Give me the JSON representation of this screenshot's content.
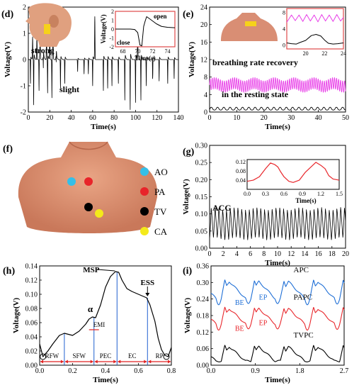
{
  "colors": {
    "axis": "#000000",
    "black": "#000000",
    "magenta": "#e83ee8",
    "red": "#e8262b",
    "blue": "#1f6fd6",
    "ao": "#35bfe8",
    "pa": "#e8242a",
    "tv": "#000000",
    "ca": "#f4ea1a",
    "skin": "#d98e74",
    "inset_frame": "#e04a4a",
    "annot_red": "#e02020",
    "annot_blue": "#2060d0"
  },
  "chart_data": [
    {
      "id": "d",
      "panel_label": "(d)",
      "type": "line",
      "xlabel": "Time(s)",
      "ylabel": "Voltage(V)",
      "xlim": [
        0,
        140
      ],
      "ylim": [
        -2.2,
        2.2
      ],
      "xticks": [
        "0",
        "20",
        "40",
        "60",
        "80",
        "100",
        "120",
        "140"
      ],
      "yticks": [
        "-2",
        "-1",
        "0",
        "1",
        "2"
      ],
      "annotations": [
        "strong",
        "slight"
      ],
      "series": [
        {
          "color": "black",
          "signal": {
            "kind": "blink",
            "strong_events": [
              [
                4,
                0.95
              ],
              [
                8,
                1.05
              ],
              [
                11,
                1.1
              ],
              [
                14,
                1.15
              ],
              [
                17,
                1.2
              ],
              [
                20,
                1.3
              ],
              [
                23,
                1.3
              ],
              [
                26,
                1.2
              ],
              [
                62,
                1.8
              ],
              [
                102,
                1.4
              ]
            ],
            "slight_events": [
              [
                2,
                -1.0
              ],
              [
                5,
                -1.9
              ],
              [
                10,
                -1.3
              ],
              [
                14,
                -1.5
              ],
              [
                18,
                -1.4
              ],
              [
                22,
                -1.6
              ],
              [
                26,
                -1.3
              ],
              [
                30,
                -1.2
              ],
              [
                34,
                -1.0
              ],
              [
                46,
                -0.5
              ],
              [
                52,
                -0.6
              ],
              [
                56,
                -0.6
              ],
              [
                60,
                -1.1
              ],
              [
                70,
                -1.3
              ],
              [
                74,
                -1.2
              ],
              [
                78,
                -1.1
              ],
              [
                84,
                -1.0
              ],
              [
                90,
                -1.7
              ],
              [
                95,
                -2.1
              ],
              [
                100,
                -1.8
              ],
              [
                105,
                -1.7
              ],
              [
                110,
                -1.1
              ],
              [
                116,
                -1.0
              ],
              [
                122,
                -0.9
              ],
              [
                130,
                -1.0
              ],
              [
                136,
                -0.8
              ]
            ]
          }
        }
      ],
      "inset": {
        "xlabel": "Time(s)",
        "ylabel": "Voltage(V)",
        "xlim": [
          67,
          75
        ],
        "ylim": [
          -2,
          2
        ],
        "xticks": [
          "68",
          "70",
          "72",
          "74"
        ],
        "yticks": [
          "-2",
          "-1",
          "0",
          "1",
          "2"
        ],
        "annotations": [
          "open",
          "close"
        ],
        "points": [
          [
            67,
            0
          ],
          [
            69,
            0
          ],
          [
            69.6,
            -0.05
          ],
          [
            70.0,
            -0.4
          ],
          [
            70.3,
            -1.8
          ],
          [
            70.55,
            -1.9
          ],
          [
            70.8,
            0.3
          ],
          [
            71.0,
            0.9
          ],
          [
            71.2,
            1.4
          ],
          [
            71.7,
            1.1
          ],
          [
            72.5,
            0.6
          ],
          [
            73.2,
            0.3
          ],
          [
            74,
            0.2
          ],
          [
            75,
            0.15
          ]
        ]
      }
    },
    {
      "id": "e",
      "panel_label": "(e)",
      "type": "line",
      "xlabel": "Time(s)",
      "ylabel": "Voltage(V)",
      "xlim": [
        0,
        50
      ],
      "ylim": [
        0,
        24
      ],
      "xticks": [
        "0",
        "10",
        "20",
        "30",
        "40",
        "50"
      ],
      "yticks": [
        "0",
        "4",
        "8",
        "12",
        "16",
        "20",
        "24"
      ],
      "annotations": [
        "breathing rate recovery",
        "in the resting state"
      ],
      "series": [
        {
          "color": "magenta",
          "signal": {
            "kind": "breath_fast",
            "base": 6.2,
            "amp": 1.3,
            "period": 0.75
          }
        },
        {
          "color": "black",
          "signal": {
            "kind": "breath_slow",
            "base": 0.6,
            "amp": 0.5,
            "period": 2.3
          }
        }
      ],
      "inset": {
        "xlim": [
          18,
          24
        ],
        "ylim": [
          -1,
          9
        ],
        "xticks": [
          "20",
          "22",
          "24"
        ],
        "yticks": [
          "0",
          "4",
          "8"
        ],
        "series": [
          {
            "color": "magenta",
            "points": [
              [
                18,
                5.6
              ],
              [
                18.5,
                7.4
              ],
              [
                18.9,
                6.0
              ],
              [
                19.3,
                7.4
              ],
              [
                19.7,
                5.8
              ],
              [
                20.1,
                7.5
              ],
              [
                20.5,
                5.9
              ],
              [
                20.9,
                7.4
              ],
              [
                21.3,
                5.7
              ],
              [
                21.7,
                7.5
              ],
              [
                22.1,
                5.9
              ],
              [
                22.5,
                7.4
              ],
              [
                22.9,
                5.8
              ],
              [
                23.3,
                7.5
              ],
              [
                23.7,
                5.9
              ],
              [
                24,
                6.8
              ]
            ]
          },
          {
            "color": "black",
            "points": [
              [
                18,
                0.5
              ],
              [
                18.5,
                0.3
              ],
              [
                19,
                0.2
              ],
              [
                19.4,
                0.6
              ],
              [
                20,
                1.1
              ],
              [
                20.6,
                2.3
              ],
              [
                21.1,
                2.6
              ],
              [
                21.6,
                2.2
              ],
              [
                22.0,
                1.2
              ],
              [
                22.4,
                0.4
              ],
              [
                22.9,
                0.2
              ],
              [
                23.4,
                0.3
              ],
              [
                24,
                0.5
              ]
            ]
          }
        ]
      }
    },
    {
      "id": "f",
      "panel_label": "(f)",
      "type": "other",
      "legend": [
        {
          "label": "AO",
          "color": "ao"
        },
        {
          "label": "PA",
          "color": "pa"
        },
        {
          "label": "TV",
          "color": "tv"
        },
        {
          "label": "CA",
          "color": "ca"
        }
      ]
    },
    {
      "id": "g",
      "panel_label": "(g)",
      "type": "line",
      "xlabel": "Time(s)",
      "ylabel": "Voltage(V)",
      "xlim": [
        0,
        20
      ],
      "ylim": [
        0,
        0.3
      ],
      "xticks": [
        "0",
        "2",
        "4",
        "6",
        "8",
        "10",
        "12",
        "14",
        "16",
        "18",
        "20"
      ],
      "yticks": [
        "0.00",
        "0.05",
        "0.10",
        "0.15",
        "0.20",
        "0.25",
        "0.30"
      ],
      "annotations": [
        "ACG"
      ],
      "series": [
        {
          "color": "black",
          "signal": {
            "kind": "acg",
            "period": 0.56,
            "low": 0.028,
            "high": 0.115
          }
        }
      ],
      "inset": {
        "xlabel": "Time(s)",
        "xlim": [
          0,
          1.5
        ],
        "ylim": [
          0,
          0.13
        ],
        "xticks": [
          "0.0",
          "0.3",
          "0.6",
          "0.9",
          "1.2",
          "1.5"
        ],
        "yticks": [
          "0.04",
          "0.08",
          "0.12"
        ],
        "points": [
          [
            0,
            0.035
          ],
          [
            0.1,
            0.04
          ],
          [
            0.2,
            0.055
          ],
          [
            0.3,
            0.09
          ],
          [
            0.38,
            0.115
          ],
          [
            0.45,
            0.108
          ],
          [
            0.5,
            0.098
          ],
          [
            0.55,
            0.075
          ],
          [
            0.6,
            0.055
          ],
          [
            0.68,
            0.035
          ],
          [
            0.75,
            0.03
          ],
          [
            0.85,
            0.04
          ],
          [
            0.95,
            0.075
          ],
          [
            1.05,
            0.1
          ],
          [
            1.12,
            0.118
          ],
          [
            1.2,
            0.105
          ],
          [
            1.27,
            0.09
          ],
          [
            1.33,
            0.06
          ],
          [
            1.4,
            0.045
          ],
          [
            1.5,
            0.04
          ]
        ]
      }
    },
    {
      "id": "h",
      "panel_label": "(h)",
      "type": "line",
      "xlabel": "Time(s)",
      "ylabel": "Voltage(V)",
      "xlim": [
        0,
        0.8
      ],
      "ylim": [
        0,
        0.14
      ],
      "xticks": [
        "0.0",
        "0.2",
        "0.4",
        "0.6",
        "0.8"
      ],
      "yticks": [
        "0.00",
        "0.02",
        "0.04",
        "0.06",
        "0.08",
        "0.10",
        "0.12",
        "0.14"
      ],
      "points": [
        [
          0,
          0.03
        ],
        [
          0.02,
          0.012
        ],
        [
          0.05,
          0.02
        ],
        [
          0.08,
          0.03
        ],
        [
          0.12,
          0.042
        ],
        [
          0.15,
          0.045
        ],
        [
          0.2,
          0.042
        ],
        [
          0.24,
          0.048
        ],
        [
          0.28,
          0.058
        ],
        [
          0.3,
          0.065
        ],
        [
          0.32,
          0.068
        ],
        [
          0.34,
          0.067
        ],
        [
          0.37,
          0.085
        ],
        [
          0.4,
          0.11
        ],
        [
          0.43,
          0.125
        ],
        [
          0.46,
          0.132
        ],
        [
          0.48,
          0.131
        ],
        [
          0.5,
          0.12
        ],
        [
          0.53,
          0.108
        ],
        [
          0.56,
          0.104
        ],
        [
          0.6,
          0.1
        ],
        [
          0.63,
          0.097
        ],
        [
          0.65,
          0.095
        ],
        [
          0.67,
          0.085
        ],
        [
          0.7,
          0.062
        ],
        [
          0.72,
          0.038
        ],
        [
          0.74,
          0.022
        ],
        [
          0.76,
          0.014
        ],
        [
          0.78,
          0.012
        ],
        [
          0.8,
          0.025
        ]
      ],
      "markers": [
        {
          "label": "MSP",
          "x": 0.47,
          "y": 0.132
        },
        {
          "label": "ESS",
          "x": 0.655,
          "y": 0.095
        },
        {
          "label": "α",
          "x": 0.325,
          "y": 0.068
        }
      ],
      "blue_lines": [
        0.15,
        0.33,
        0.47,
        0.655
      ],
      "phases": [
        {
          "label": "RFW",
          "x0": 0.0,
          "x1": 0.15
        },
        {
          "label": "SFW",
          "x0": 0.15,
          "x1": 0.33
        },
        {
          "label": "PEC",
          "x0": 0.33,
          "x1": 0.47
        },
        {
          "label": "EC",
          "x0": 0.47,
          "x1": 0.655
        },
        {
          "label": "RP",
          "x0": 0.655,
          "x1": 0.8
        }
      ],
      "emi": {
        "label": "EMI",
        "x0": 0.3,
        "x1": 0.36,
        "y": 0.05
      }
    },
    {
      "id": "i",
      "panel_label": "(i)",
      "type": "line",
      "xlabel": "Time(s)",
      "ylabel": "Voltage(V)",
      "xlim": [
        0,
        2.7
      ],
      "ylim": [
        0,
        0.36
      ],
      "xticks": [
        "0.0",
        "0.9",
        "1.8",
        "2.7"
      ],
      "yticks": [
        "0.00",
        "0.06",
        "0.12",
        "0.18",
        "0.24",
        "0.30",
        "0.36"
      ],
      "series": [
        {
          "name": "APC",
          "color": "blue",
          "signal": {
            "kind": "pulse",
            "period": 0.6,
            "phase": 0.1,
            "base": 0.242,
            "drop": 0.02,
            "peak": 0.065,
            "offset": 0.0
          }
        },
        {
          "name": "PAPC",
          "color": "red",
          "signal": {
            "kind": "pulse",
            "period": 0.6,
            "phase": 0.1,
            "base": 0.15,
            "drop": 0.02,
            "peak": 0.058,
            "offset": 0.0
          }
        },
        {
          "name": "TVPC",
          "color": "black",
          "signal": {
            "kind": "pulse",
            "period": 0.6,
            "phase": 0.1,
            "base": 0.015,
            "drop": 0.0,
            "peak": 0.055,
            "offset": 0.0
          }
        }
      ],
      "annotations": [
        {
          "text": "BE",
          "color": "blue"
        },
        {
          "text": "EP",
          "color": "blue"
        },
        {
          "text": "BE",
          "color": "red"
        },
        {
          "text": "EP",
          "color": "red"
        }
      ]
    }
  ]
}
